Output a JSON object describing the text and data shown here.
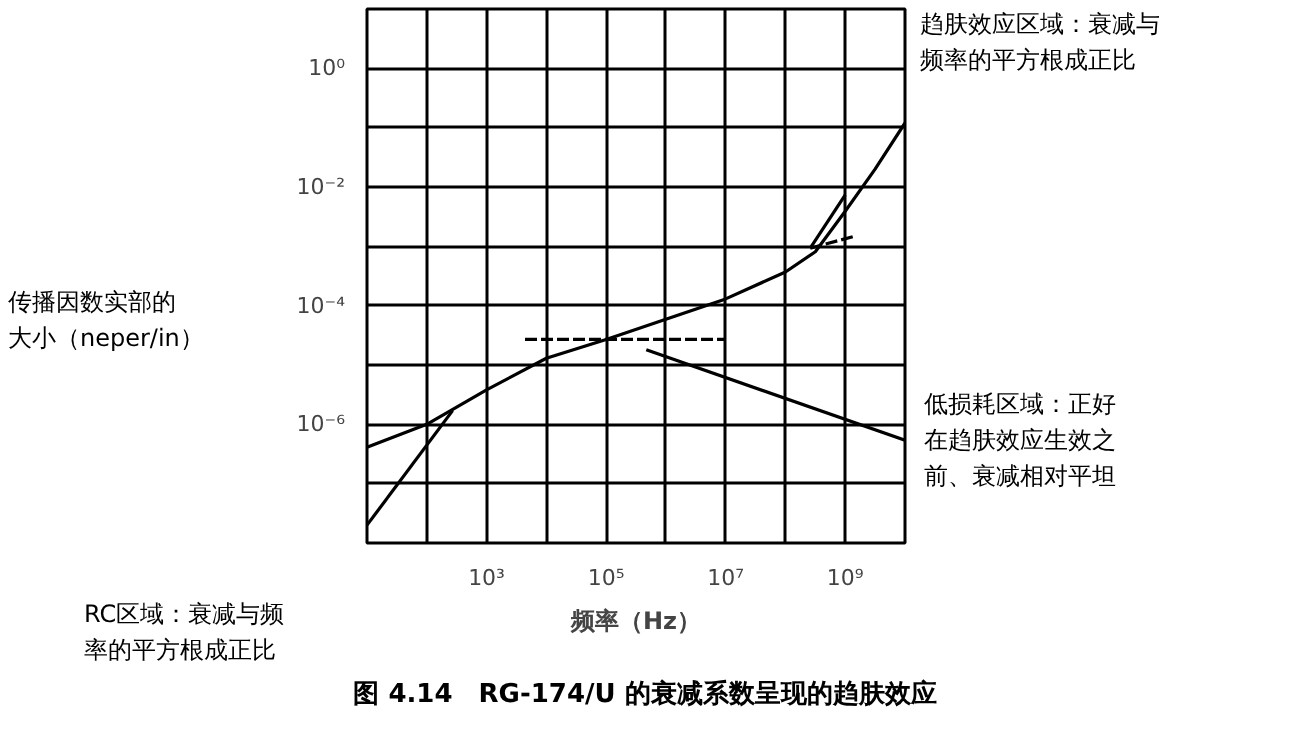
{
  "chart_data": {
    "type": "line",
    "title": "图 4.14　RG-174/U 的衰减系数呈现的趋肤效应",
    "xlabel": "频率（Hz）",
    "ylabel": "传播因数实部的大小（neper/in）",
    "log": "xy",
    "grid": true,
    "legend": false,
    "marker": "none",
    "xlim": [
      10,
      10000000000
    ],
    "ylim": [
      1e-08,
      10
    ],
    "xticks": [
      {
        "value": 100,
        "label": null
      },
      {
        "value": 1000,
        "label": "10³"
      },
      {
        "value": 10000,
        "label": null
      },
      {
        "value": 100000,
        "label": "10⁵"
      },
      {
        "value": 1000000,
        "label": null
      },
      {
        "value": 10000000,
        "label": "10⁷"
      },
      {
        "value": 100000000,
        "label": null
      },
      {
        "value": 1000000000,
        "label": "10⁹"
      }
    ],
    "yticks": [
      {
        "value": 1e-07,
        "label": null
      },
      {
        "value": 1e-06,
        "label": "10⁻⁶"
      },
      {
        "value": 1e-05,
        "label": null
      },
      {
        "value": 0.0001,
        "label": "10⁻⁴"
      },
      {
        "value": 0.001,
        "label": null
      },
      {
        "value": 0.01,
        "label": "10⁻²"
      },
      {
        "value": 0.1,
        "label": null
      },
      {
        "value": 1,
        "label": "10⁰"
      }
    ],
    "annotations": [
      "趋肤效应区域：衰减与",
      "频率的平方根成正比",
      "低损耗区域：正好",
      "在趋肤效应生效之",
      "前、衰减相对平坦",
      "RC区域：衰减与频",
      "率的平方根成正比"
    ],
    "series": [
      {
        "color": "#000000",
        "line_style": "solid",
        "x": [
          10,
          100,
          1000,
          10000,
          100000,
          1000000,
          10000000,
          100000000,
          316000000,
          1000000000,
          3160000000,
          10000000000
        ],
        "values": [
          4.1e-07,
          1e-06,
          3.8e-06,
          1.3e-05,
          2.7e-05,
          5.9e-05,
          0.00013,
          0.00037,
          0.00081,
          0.0039,
          0.02,
          0.12
        ]
      },
      {
        "color": "#000000",
        "line_style": "solid",
        "x": [
          10,
          270
        ],
        "values": [
          2e-08,
          1.7e-06
        ]
      },
      {
        "color": "#000000",
        "line_style": "dashed",
        "x": [
          4400,
          10000000
        ],
        "values": [
          2.7e-05,
          2.7e-05
        ]
      },
      {
        "color": "#000000",
        "line_style": "solid",
        "x": [
          470000,
          10000000000
        ],
        "values": [
          1.8e-05,
          5.4e-07
        ]
      },
      {
        "color": "#000000",
        "line_style": "dashed",
        "x": [
          260000000,
          1500000000
        ],
        "values": [
          0.00093,
          0.0015
        ]
      },
      {
        "color": "#000000",
        "line_style": "solid",
        "x": [
          260000000,
          1000000000
        ],
        "values": [
          0.00093,
          0.0074
        ]
      }
    ]
  }
}
